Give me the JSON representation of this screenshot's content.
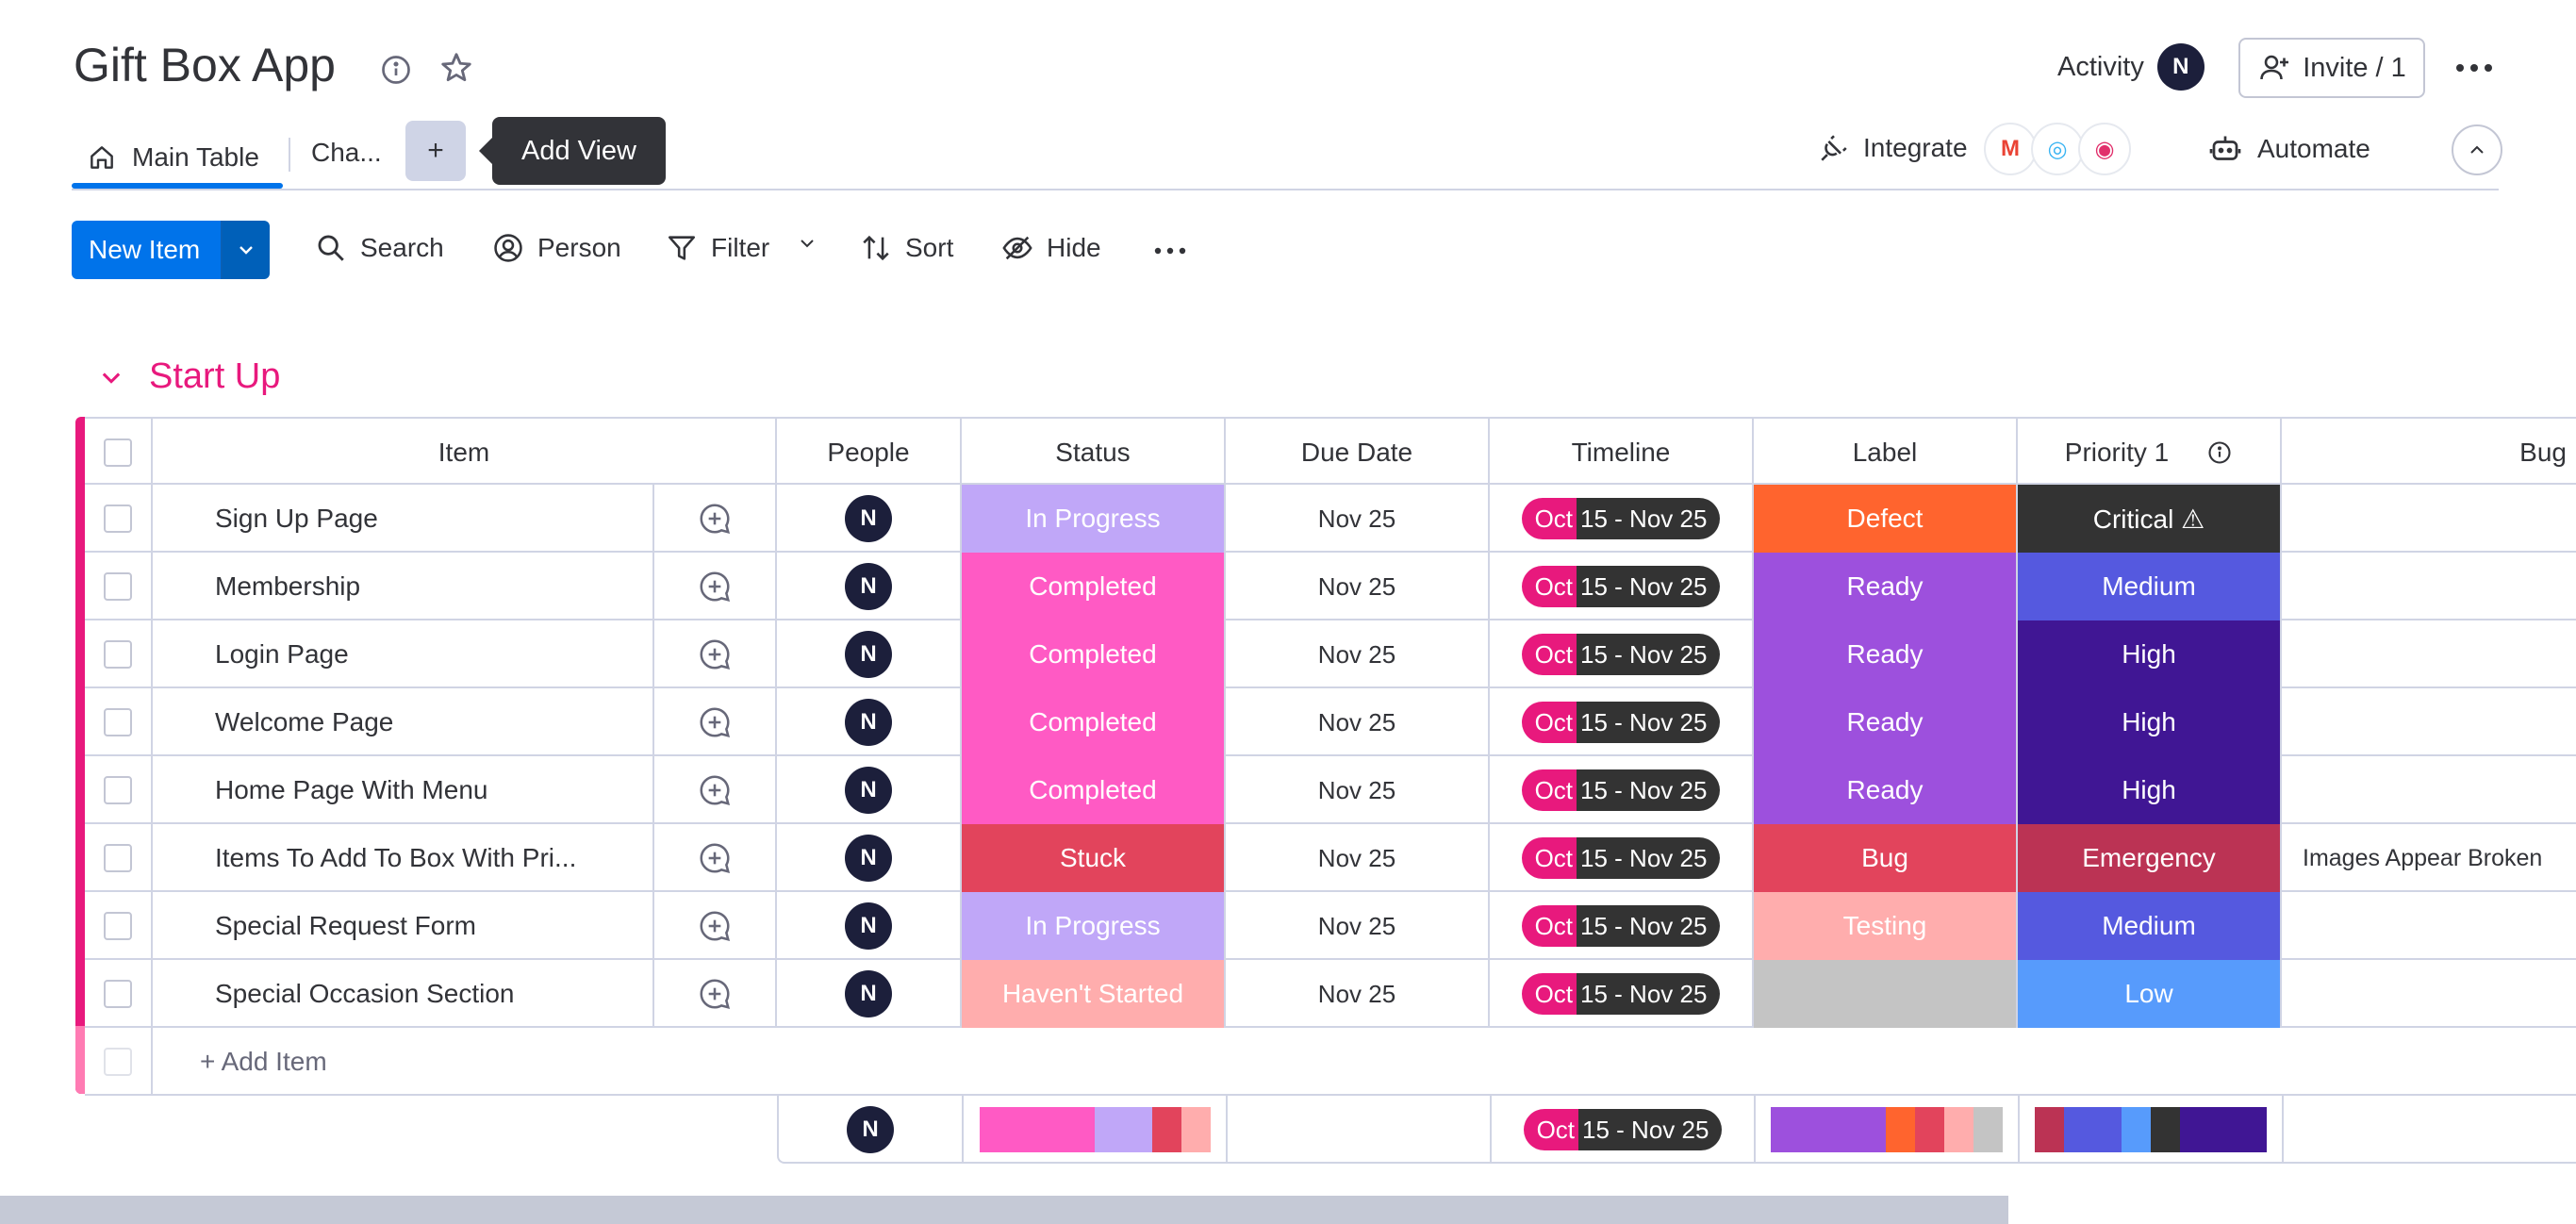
{
  "header": {
    "title": "Gift Box App",
    "activity_label": "Activity",
    "user_initial": "N",
    "invite_label": "Invite / 1"
  },
  "views": {
    "main_tab": "Main Table",
    "chart_tab": "Cha...",
    "add_view_symbol": "+",
    "tooltip": "Add View",
    "integrate_label": "Integrate",
    "integration_logos": [
      "M",
      "◎",
      "◉"
    ],
    "automate_label": "Automate"
  },
  "toolbar": {
    "new_item": "New Item",
    "search": "Search",
    "person": "Person",
    "filter": "Filter",
    "sort": "Sort",
    "hide": "Hide"
  },
  "group": {
    "title": "Start Up",
    "columns": [
      "Item",
      "People",
      "Status",
      "Due Date",
      "Timeline",
      "Label",
      "Priority 1",
      "Bug"
    ],
    "add_item": "+ Add Item",
    "rows": [
      {
        "name": "Sign Up Page",
        "person": "N",
        "status": "In Progress",
        "status_color": "#c0a7f8",
        "due": "Nov 25",
        "tl_start": "Oct",
        "tl_rest": "15 - Nov 25",
        "label": "Defect",
        "label_color": "#ff642e",
        "priority": "Critical ⚠",
        "priority_color": "#333333",
        "bug": ""
      },
      {
        "name": "Membership",
        "person": "N",
        "status": "Completed",
        "status_color": "#ff5ac4",
        "due": "Nov 25",
        "tl_start": "Oct",
        "tl_rest": "15 - Nov 25",
        "label": "Ready",
        "label_color": "#9d50dd",
        "priority": "Medium",
        "priority_color": "#5559df",
        "bug": ""
      },
      {
        "name": "Login Page",
        "person": "N",
        "status": "Completed",
        "status_color": "#ff5ac4",
        "due": "Nov 25",
        "tl_start": "Oct",
        "tl_rest": "15 - Nov 25",
        "label": "Ready",
        "label_color": "#9d50dd",
        "priority": "High",
        "priority_color": "#401694",
        "bug": ""
      },
      {
        "name": "Welcome Page",
        "person": "N",
        "status": "Completed",
        "status_color": "#ff5ac4",
        "due": "Nov 25",
        "tl_start": "Oct",
        "tl_rest": "15 - Nov 25",
        "label": "Ready",
        "label_color": "#9d50dd",
        "priority": "High",
        "priority_color": "#401694",
        "bug": ""
      },
      {
        "name": "Home Page With Menu",
        "person": "N",
        "status": "Completed",
        "status_color": "#ff5ac4",
        "due": "Nov 25",
        "tl_start": "Oct",
        "tl_rest": "15 - Nov 25",
        "label": "Ready",
        "label_color": "#9d50dd",
        "priority": "High",
        "priority_color": "#401694",
        "bug": ""
      },
      {
        "name": "Items To Add To Box With Pri...",
        "person": "N",
        "status": "Stuck",
        "status_color": "#e2445c",
        "due": "Nov 25",
        "tl_start": "Oct",
        "tl_rest": "15 - Nov 25",
        "label": "Bug",
        "label_color": "#e2445c",
        "priority": "Emergency",
        "priority_color": "#bb3354",
        "bug": "Images Appear Broken"
      },
      {
        "name": "Special Request Form",
        "person": "N",
        "status": "In Progress",
        "status_color": "#c0a7f8",
        "due": "Nov 25",
        "tl_start": "Oct",
        "tl_rest": "15 - Nov 25",
        "label": "Testing",
        "label_color": "#ffadad",
        "priority": "Medium",
        "priority_color": "#5559df",
        "bug": ""
      },
      {
        "name": "Special Occasion Section",
        "person": "N",
        "status": "Haven't Started",
        "status_color": "#ffadad",
        "due": "Nov 25",
        "tl_start": "Oct",
        "tl_rest": "15 - Nov 25",
        "label": "",
        "label_color": "#c4c4c4",
        "priority": "Low",
        "priority_color": "#579bfc",
        "bug": ""
      }
    ],
    "summary": {
      "person": "N",
      "tl_start": "Oct",
      "tl_rest": "15 - Nov 25",
      "status_dist": [
        {
          "color": "#ff5ac4",
          "share": 0.5
        },
        {
          "color": "#c0a7f8",
          "share": 0.25
        },
        {
          "color": "#e2445c",
          "share": 0.125
        },
        {
          "color": "#ffadad",
          "share": 0.125
        }
      ],
      "label_dist": [
        {
          "color": "#9d50dd",
          "share": 0.5
        },
        {
          "color": "#ff642e",
          "share": 0.125
        },
        {
          "color": "#e2445c",
          "share": 0.125
        },
        {
          "color": "#ffadad",
          "share": 0.125
        },
        {
          "color": "#c4c4c4",
          "share": 0.125
        }
      ],
      "priority_dist": [
        {
          "color": "#bb3354",
          "share": 0.125
        },
        {
          "color": "#5559df",
          "share": 0.25
        },
        {
          "color": "#579bfc",
          "share": 0.125
        },
        {
          "color": "#333333",
          "share": 0.125
        },
        {
          "color": "#401694",
          "share": 0.375
        }
      ]
    }
  }
}
